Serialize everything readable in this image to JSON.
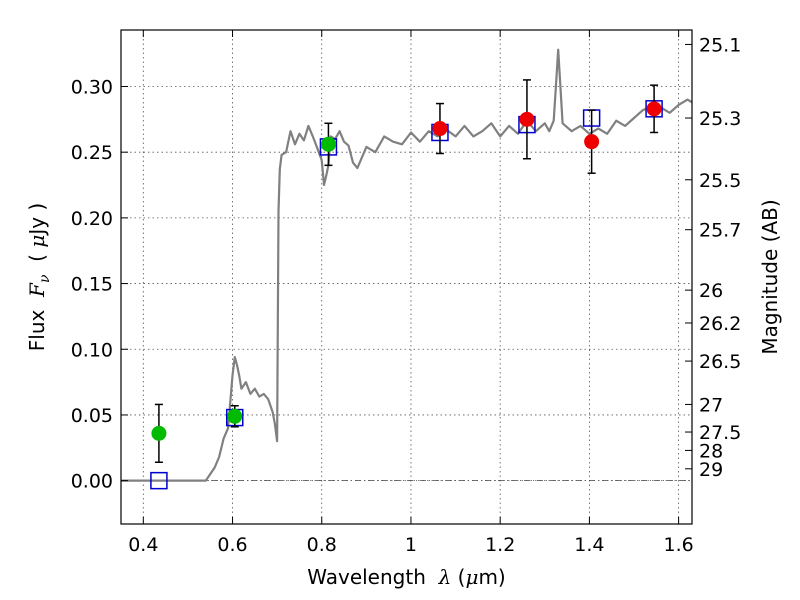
{
  "chart_data": {
    "type": "line",
    "xlabel_parts": [
      "Wavelength  ",
      "λ",
      " (",
      "μ",
      "m)"
    ],
    "ylabel_parts": [
      "Flux  ",
      "F",
      "ν",
      "  ( ",
      "μ",
      "Jy )"
    ],
    "y2label": "Magnitude (AB)",
    "xlim": [
      0.35,
      1.63
    ],
    "ylim": [
      -0.033,
      0.343
    ],
    "x_ticks": [
      0.4,
      0.6,
      0.8,
      1.0,
      1.2,
      1.4,
      1.6
    ],
    "x_tick_labels": [
      "0.4",
      "0.6",
      "0.8",
      "1",
      "1.2",
      "1.4",
      "1.6"
    ],
    "y_ticks": [
      0.0,
      0.05,
      0.1,
      0.15,
      0.2,
      0.25,
      0.3
    ],
    "y_tick_labels": [
      "0.00",
      "0.05",
      "0.10",
      "0.15",
      "0.20",
      "0.25",
      "0.30"
    ],
    "y2_ticks": [
      {
        "flux": 0.332,
        "label": "25.1"
      },
      {
        "flux": 0.276,
        "label": "25.3"
      },
      {
        "flux": 0.229,
        "label": "25.5"
      },
      {
        "flux": 0.191,
        "label": "25.7"
      },
      {
        "flux": 0.145,
        "label": "26"
      },
      {
        "flux": 0.12,
        "label": "26.2"
      },
      {
        "flux": 0.091,
        "label": "26.5"
      },
      {
        "flux": 0.058,
        "label": "27"
      },
      {
        "flux": 0.037,
        "label": "27.5"
      },
      {
        "flux": 0.023,
        "label": "28"
      },
      {
        "flux": 0.009,
        "label": "29"
      }
    ],
    "grid": true,
    "colors": {
      "spectrum": "#808080",
      "model": "#0000cc",
      "detection_green": "#00bb00",
      "detection_red": "#ee0000",
      "errorbar": "#000000"
    },
    "series": [
      {
        "kind": "spectrum",
        "x": [
          0.35,
          0.4,
          0.45,
          0.5,
          0.52,
          0.54,
          0.56,
          0.57,
          0.58,
          0.59,
          0.595,
          0.6,
          0.605,
          0.61,
          0.615,
          0.62,
          0.63,
          0.64,
          0.65,
          0.66,
          0.67,
          0.68,
          0.69,
          0.695,
          0.7,
          0.703,
          0.706,
          0.71,
          0.72,
          0.73,
          0.74,
          0.75,
          0.76,
          0.77,
          0.78,
          0.79,
          0.8,
          0.805,
          0.81,
          0.815,
          0.82,
          0.83,
          0.84,
          0.85,
          0.86,
          0.87,
          0.88,
          0.9,
          0.92,
          0.94,
          0.96,
          0.98,
          1.0,
          1.02,
          1.04,
          1.06,
          1.08,
          1.1,
          1.12,
          1.14,
          1.16,
          1.18,
          1.2,
          1.22,
          1.24,
          1.26,
          1.28,
          1.3,
          1.31,
          1.32,
          1.325,
          1.33,
          1.335,
          1.34,
          1.36,
          1.38,
          1.4,
          1.42,
          1.44,
          1.46,
          1.48,
          1.5,
          1.52,
          1.54,
          1.56,
          1.58,
          1.6,
          1.62,
          1.63
        ],
        "y": [
          0.0,
          0.0,
          0.0,
          0.0,
          0.0,
          0.0,
          0.01,
          0.018,
          0.032,
          0.04,
          0.06,
          0.08,
          0.094,
          0.088,
          0.08,
          0.07,
          0.075,
          0.066,
          0.07,
          0.064,
          0.066,
          0.062,
          0.052,
          0.043,
          0.03,
          0.205,
          0.237,
          0.248,
          0.25,
          0.266,
          0.256,
          0.264,
          0.259,
          0.27,
          0.262,
          0.253,
          0.244,
          0.225,
          0.232,
          0.24,
          0.262,
          0.26,
          0.266,
          0.258,
          0.255,
          0.242,
          0.238,
          0.254,
          0.25,
          0.262,
          0.258,
          0.256,
          0.265,
          0.258,
          0.266,
          0.262,
          0.267,
          0.262,
          0.27,
          0.262,
          0.266,
          0.272,
          0.262,
          0.27,
          0.264,
          0.274,
          0.266,
          0.272,
          0.266,
          0.274,
          0.3,
          0.328,
          0.3,
          0.272,
          0.266,
          0.27,
          0.264,
          0.268,
          0.264,
          0.274,
          0.27,
          0.276,
          0.282,
          0.285,
          0.284,
          0.28,
          0.286,
          0.29,
          0.288
        ]
      },
      {
        "kind": "model",
        "x": [
          0.435,
          0.605,
          0.815,
          1.065,
          1.26,
          1.405,
          1.545
        ],
        "y": [
          0.0,
          0.048,
          0.254,
          0.265,
          0.271,
          0.276,
          0.283
        ]
      },
      {
        "kind": "observed",
        "x": [
          0.435,
          0.605,
          0.815,
          1.065,
          1.26,
          1.405,
          1.545
        ],
        "y": [
          0.036,
          0.049,
          0.256,
          0.268,
          0.275,
          0.258,
          0.283
        ],
        "yerr": [
          0.022,
          0.008,
          0.016,
          0.019,
          0.03,
          0.024,
          0.018
        ],
        "color": [
          "detection_green",
          "detection_green",
          "detection_green",
          "detection_red",
          "detection_red",
          "detection_red",
          "detection_red"
        ]
      }
    ]
  }
}
